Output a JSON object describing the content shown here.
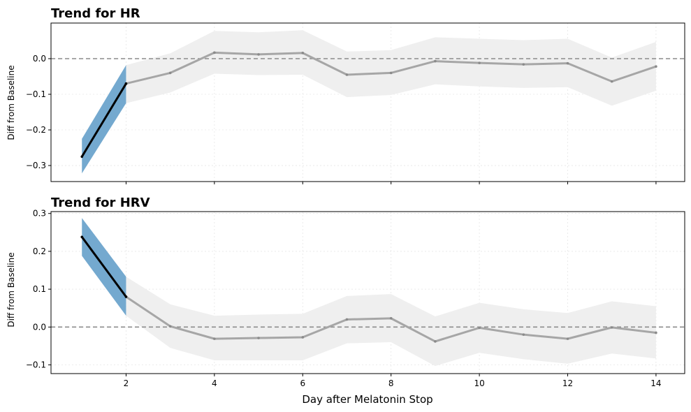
{
  "chart_data": [
    {
      "type": "line",
      "title": "Trend for HR",
      "xlabel": "",
      "ylabel": "Diff from Baseline",
      "xlim": [
        0.3,
        14.65
      ],
      "ylim": [
        -0.345,
        0.1
      ],
      "x_ticks": [
        2,
        4,
        6,
        8,
        10,
        12,
        14
      ],
      "y_ticks": [
        -0.3,
        -0.2,
        -0.1,
        0.0
      ],
      "y_tick_labels": [
        "−0.3",
        "−0.2",
        "−0.1",
        "0.0"
      ],
      "x_tick_labels": [],
      "grid": true,
      "baseline": 0.0,
      "x": [
        1,
        2,
        3,
        4,
        5,
        6,
        7,
        8,
        9,
        10,
        11,
        12,
        13,
        14
      ],
      "series": [
        {
          "values": [
            -0.275,
            -0.07,
            -0.04,
            0.017,
            0.012,
            0.016,
            -0.045,
            -0.04,
            -0.007,
            -0.012,
            -0.016,
            -0.013,
            -0.064,
            -0.022
          ],
          "lower": [
            -0.322,
            -0.125,
            -0.095,
            -0.042,
            -0.046,
            -0.045,
            -0.108,
            -0.102,
            -0.072,
            -0.078,
            -0.082,
            -0.08,
            -0.132,
            -0.09
          ],
          "upper": [
            -0.225,
            -0.018,
            0.015,
            0.078,
            0.074,
            0.08,
            0.02,
            0.024,
            0.06,
            0.056,
            0.052,
            0.056,
            0.003,
            0.047
          ]
        }
      ],
      "highlight_x_range": [
        1,
        2
      ],
      "colors": {
        "highlight_line": "#000000",
        "highlight_band": "#74a9cf",
        "rest_line": "#a6a6a6",
        "rest_band": "#efefef",
        "baseline": "#8c8c8c"
      }
    },
    {
      "type": "line",
      "title": "Trend for HRV",
      "xlabel": "Day after Melatonin Stop",
      "ylabel": "Diff from Baseline",
      "xlim": [
        0.3,
        14.65
      ],
      "ylim": [
        -0.123,
        0.305
      ],
      "x_ticks": [
        2,
        4,
        6,
        8,
        10,
        12,
        14
      ],
      "x_tick_labels": [
        "2",
        "4",
        "6",
        "8",
        "10",
        "12",
        "14"
      ],
      "y_ticks": [
        -0.1,
        0.0,
        0.1,
        0.2,
        0.3
      ],
      "y_tick_labels": [
        "−0.1",
        "0.0",
        "0.1",
        "0.2",
        "0.3"
      ],
      "grid": true,
      "baseline": 0.0,
      "x": [
        1,
        2,
        3,
        4,
        5,
        6,
        7,
        8,
        9,
        10,
        11,
        12,
        13,
        14
      ],
      "series": [
        {
          "values": [
            0.238,
            0.08,
            0.002,
            -0.031,
            -0.029,
            -0.027,
            0.02,
            0.023,
            -0.038,
            -0.002,
            -0.02,
            -0.031,
            -0.001,
            -0.015
          ],
          "lower": [
            0.188,
            0.03,
            -0.055,
            -0.088,
            -0.088,
            -0.088,
            -0.043,
            -0.04,
            -0.103,
            -0.068,
            -0.085,
            -0.097,
            -0.07,
            -0.083
          ],
          "upper": [
            0.288,
            0.133,
            0.06,
            0.03,
            0.033,
            0.035,
            0.082,
            0.087,
            0.028,
            0.064,
            0.047,
            0.037,
            0.068,
            0.055
          ]
        }
      ],
      "highlight_x_range": [
        1,
        2
      ],
      "colors": {
        "highlight_line": "#000000",
        "highlight_band": "#74a9cf",
        "rest_line": "#a6a6a6",
        "rest_band": "#efefef",
        "baseline": "#8c8c8c"
      }
    }
  ]
}
